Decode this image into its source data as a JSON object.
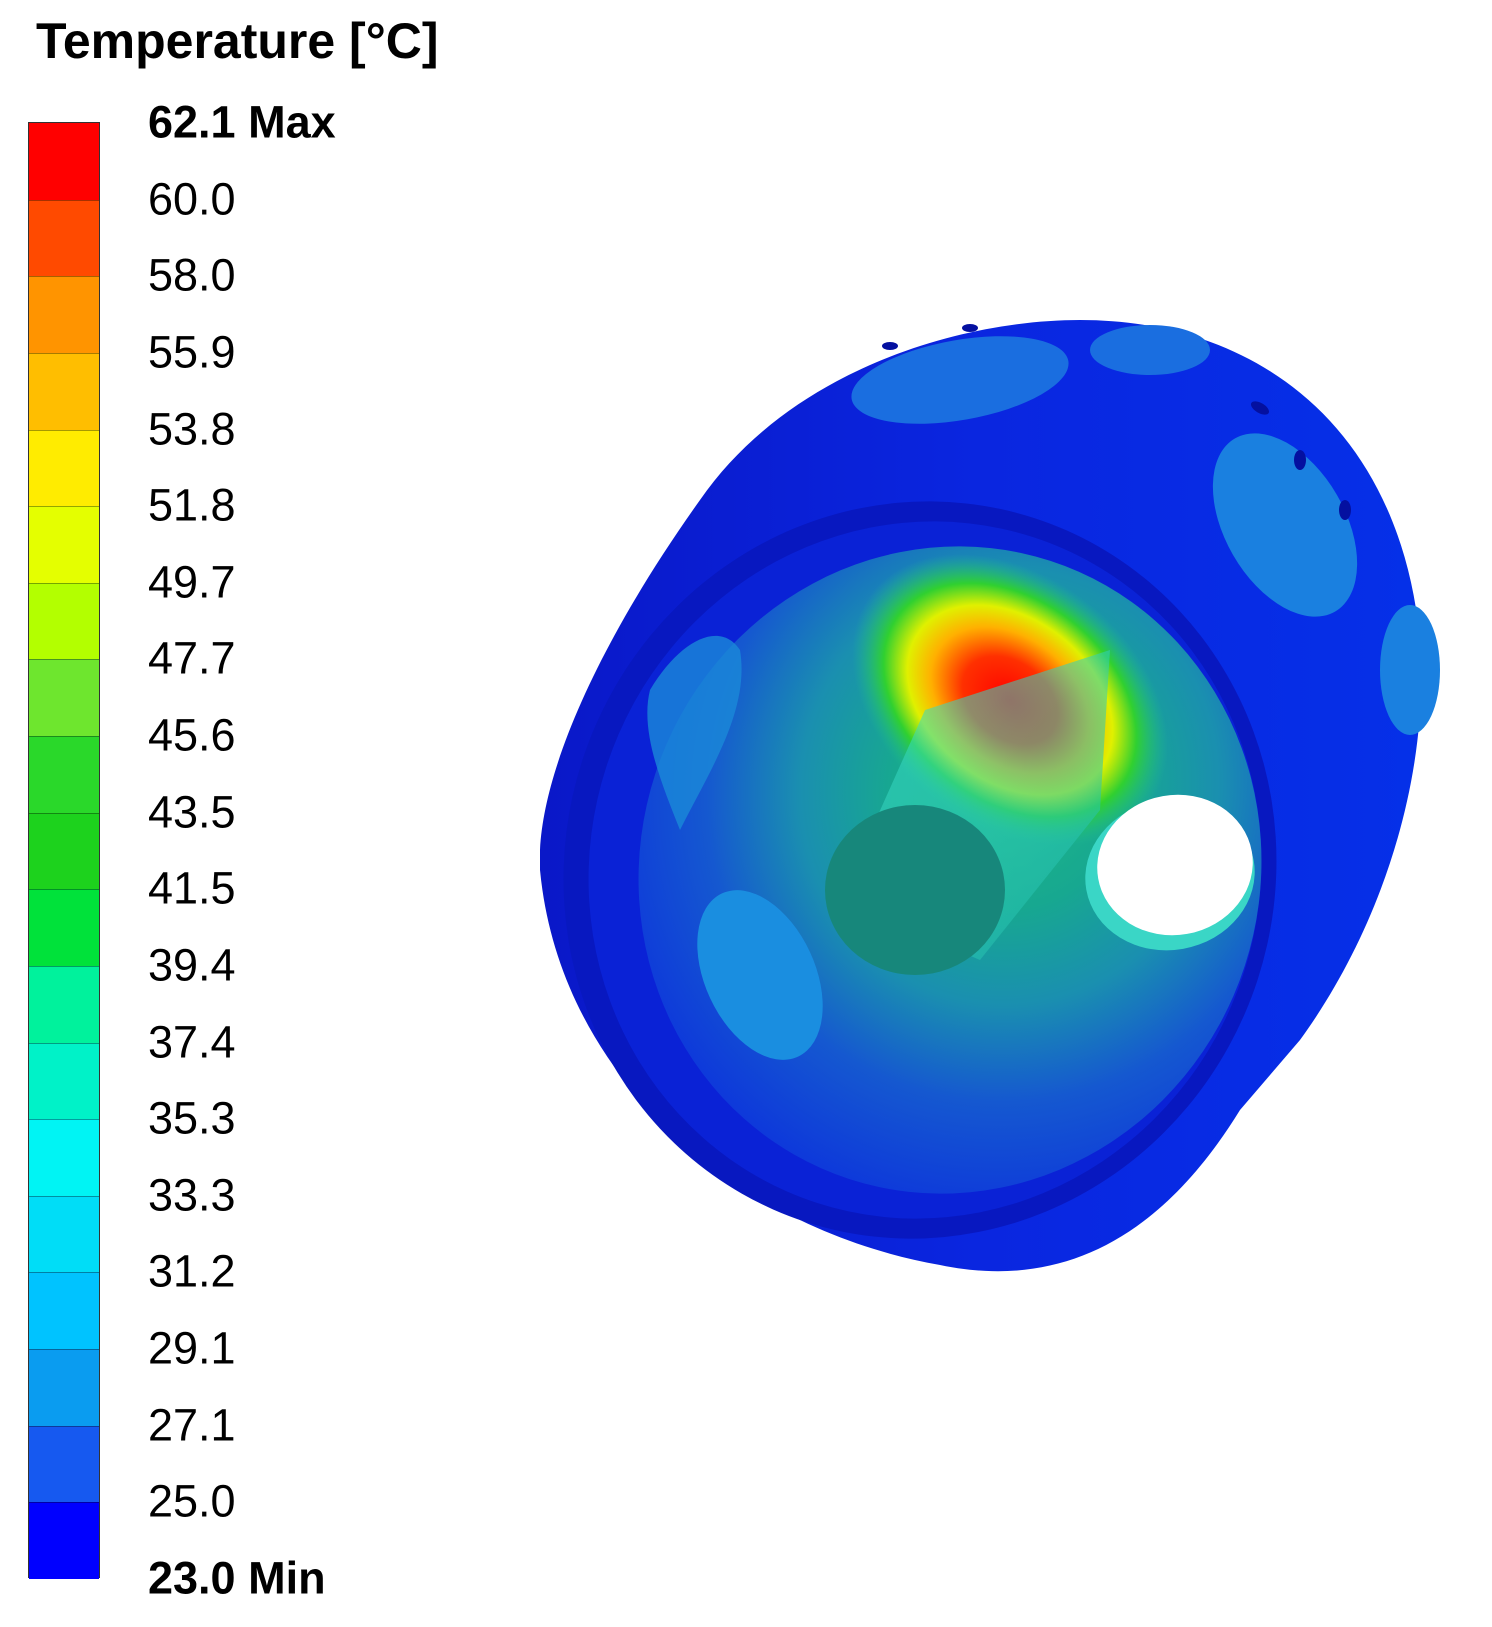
{
  "legend": {
    "title": "Temperature [°C]",
    "max_label": "62.1 Max",
    "min_label": "23.0 Min",
    "ticks": [
      "60.0",
      "58.0",
      "55.9",
      "53.8",
      "51.8",
      "49.7",
      "47.7",
      "45.6",
      "43.5",
      "41.5",
      "39.4",
      "37.4",
      "35.3",
      "33.3",
      "31.2",
      "29.1",
      "27.1",
      "25.0"
    ],
    "colors": [
      "#ff0000",
      "#ff4a00",
      "#ff9400",
      "#ffbe00",
      "#ffec00",
      "#e4ff00",
      "#b3ff00",
      "#6ee62e",
      "#2ad82a",
      "#1dd21d",
      "#00e23a",
      "#00f29c",
      "#00f2c8",
      "#00f4f4",
      "#00ddf7",
      "#00c3ff",
      "#0a9cf0",
      "#1659f0",
      "#0000ff"
    ]
  },
  "model": {
    "name": "cylinder-temperature-contour"
  }
}
